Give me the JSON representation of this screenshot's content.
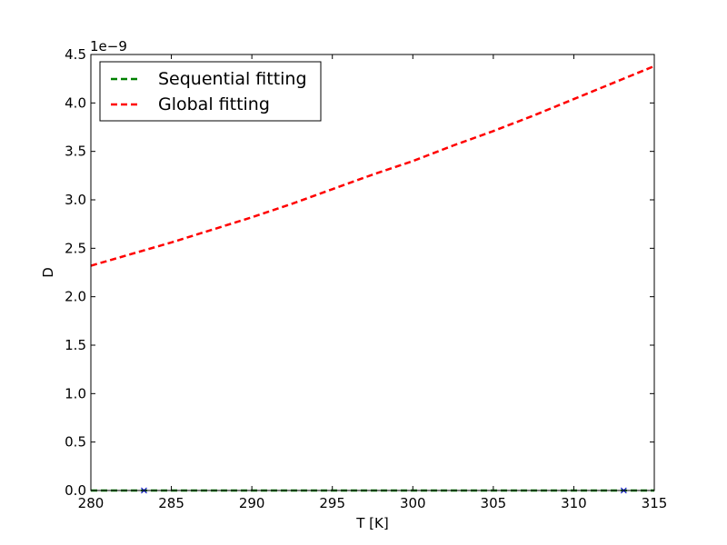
{
  "chart_data": {
    "type": "line",
    "title": "",
    "xlabel": "T [K]",
    "ylabel": "D",
    "y_offset_label": "1e−9",
    "xlim": [
      280,
      315
    ],
    "ylim": [
      0,
      4.5
    ],
    "y_scale_factor": 1e-09,
    "x_ticks": [
      280,
      285,
      290,
      295,
      300,
      305,
      310,
      315
    ],
    "x_tick_labels": [
      "280",
      "285",
      "290",
      "295",
      "300",
      "305",
      "310",
      "315"
    ],
    "y_ticks": [
      0,
      0.5,
      1,
      1.5,
      2,
      2.5,
      3,
      3.5,
      4,
      4.5
    ],
    "y_tick_labels": [
      "0.0",
      "0.5",
      "1.0",
      "1.5",
      "2.0",
      "2.5",
      "3.0",
      "3.5",
      "4.0",
      "4.5"
    ],
    "grid": false,
    "legend_position": "top-left",
    "series": [
      {
        "name": "Sequential fitting",
        "color": "#008000",
        "dash": "dashed",
        "x": [
          280,
          283.3,
          285,
          290,
          295,
          300,
          305,
          310,
          313.1,
          315
        ],
        "y": [
          0,
          0,
          0,
          0,
          0,
          0,
          0,
          0,
          0,
          0
        ]
      },
      {
        "name": "Global fitting",
        "color": "#ff0000",
        "dash": "dashed",
        "x": [
          280,
          282.5,
          285,
          287.5,
          290,
          292.5,
          295,
          297.5,
          300,
          302.5,
          305,
          307.5,
          310,
          312.5,
          315
        ],
        "y": [
          2.32,
          2.44,
          2.56,
          2.69,
          2.82,
          2.96,
          3.11,
          3.26,
          3.4,
          3.56,
          3.71,
          3.87,
          4.04,
          4.21,
          4.38
        ]
      }
    ],
    "markers": {
      "color": "#0000cc",
      "symbol": "x",
      "x": [
        283.3,
        313.1
      ],
      "y": [
        0,
        0
      ]
    }
  }
}
